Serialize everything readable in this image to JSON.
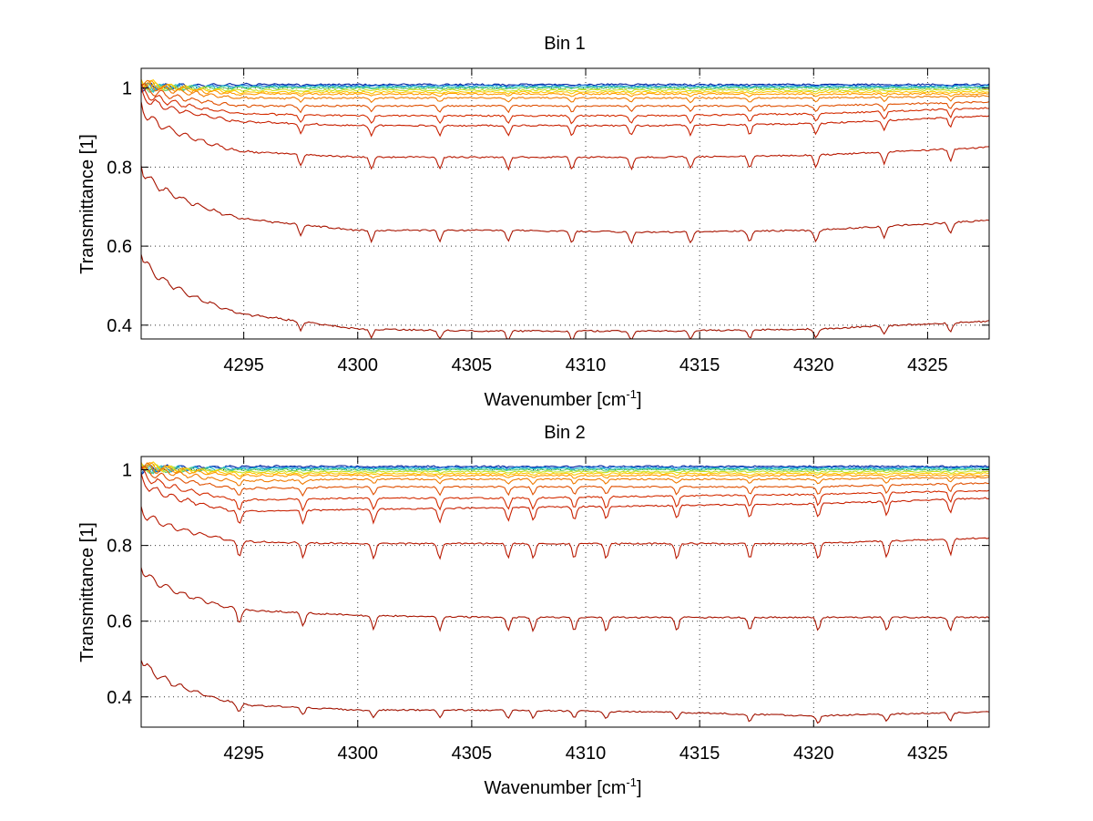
{
  "chart_data": [
    {
      "type": "line",
      "title": "Bin 1",
      "xlabel": "Wavenumber [cm",
      "xlabel_sup": "-1",
      "xlabel_close": "]",
      "ylabel": "Transmittance [1]",
      "xlim": [
        4290.5,
        4327.7
      ],
      "ylim": [
        0.365,
        1.05
      ],
      "xticks": [
        4295,
        4300,
        4305,
        4310,
        4315,
        4320,
        4325
      ],
      "yticks": [
        0.4,
        0.6,
        0.8,
        1
      ],
      "ytick_labels": [
        "0.4",
        "0.6",
        "0.8",
        "1"
      ],
      "grid": true,
      "line_features": [
        4297.5,
        4300.6,
        4303.6,
        4306.6,
        4309.4,
        4312.0,
        4314.6,
        4317.2,
        4320.1,
        4323.1,
        4326.0
      ],
      "series": [
        {
          "name": "s1",
          "color": "#a11200",
          "baseline": [
            0.59,
            0.43,
            0.39,
            0.385,
            0.385,
            0.39,
            0.41
          ],
          "dip": 0.022
        },
        {
          "name": "s2",
          "color": "#a81400",
          "baseline": [
            0.81,
            0.67,
            0.64,
            0.64,
            0.635,
            0.64,
            0.665
          ],
          "dip": 0.028
        },
        {
          "name": "s3",
          "color": "#b81800",
          "baseline": [
            0.96,
            0.84,
            0.825,
            0.825,
            0.825,
            0.83,
            0.85
          ],
          "dip": 0.03
        },
        {
          "name": "s4",
          "color": "#c82000",
          "baseline": [
            0.99,
            0.915,
            0.905,
            0.905,
            0.905,
            0.91,
            0.93
          ],
          "dip": 0.025
        },
        {
          "name": "s5",
          "color": "#d42c00",
          "baseline": [
            1.0,
            0.935,
            0.93,
            0.93,
            0.93,
            0.935,
            0.95
          ],
          "dip": 0.02
        },
        {
          "name": "s6",
          "color": "#e05000",
          "baseline": [
            1.01,
            0.955,
            0.955,
            0.955,
            0.955,
            0.955,
            0.965
          ],
          "dip": 0.015
        },
        {
          "name": "s7",
          "color": "#f07a00",
          "baseline": [
            1.02,
            0.975,
            0.975,
            0.975,
            0.975,
            0.975,
            0.98
          ],
          "dip": 0.01
        },
        {
          "name": "s8",
          "color": "#ff9a00",
          "baseline": [
            1.02,
            0.985,
            0.985,
            0.985,
            0.985,
            0.985,
            0.985
          ],
          "dip": 0.006
        },
        {
          "name": "s9",
          "color": "#ffc800",
          "baseline": [
            1.02,
            0.99,
            0.99,
            0.99,
            0.99,
            0.99,
            0.99
          ],
          "dip": 0.004
        },
        {
          "name": "s10",
          "color": "#c8e020",
          "baseline": [
            1.01,
            0.995,
            0.995,
            0.995,
            0.995,
            0.995,
            0.995
          ],
          "dip": 0.003
        },
        {
          "name": "s11",
          "color": "#6ad070",
          "baseline": [
            1.0,
            1.0,
            1.0,
            1.0,
            1.0,
            1.0,
            1.0
          ],
          "dip": 0.002
        },
        {
          "name": "s12",
          "color": "#20c0c0",
          "baseline": [
            1.0,
            1.003,
            1.003,
            1.003,
            1.003,
            1.003,
            1.003
          ],
          "dip": 0.002
        },
        {
          "name": "s13",
          "color": "#1e78d8",
          "baseline": [
            1.0,
            1.006,
            1.006,
            1.006,
            1.006,
            1.006,
            1.006
          ],
          "dip": 0.002
        },
        {
          "name": "s14",
          "color": "#0022a0",
          "baseline": [
            1.0,
            1.009,
            1.009,
            1.009,
            1.009,
            1.009,
            1.009
          ],
          "dip": 0.002
        }
      ]
    },
    {
      "type": "line",
      "title": "Bin 2",
      "xlabel": "Wavenumber [cm",
      "xlabel_sup": "-1",
      "xlabel_close": "]",
      "ylabel": "Transmittance [1]",
      "xlim": [
        4290.5,
        4327.7
      ],
      "ylim": [
        0.32,
        1.035
      ],
      "xticks": [
        4295,
        4300,
        4305,
        4310,
        4315,
        4320,
        4325
      ],
      "yticks": [
        0.4,
        0.6,
        0.8,
        1
      ],
      "ytick_labels": [
        "0.4",
        "0.6",
        "0.8",
        "1"
      ],
      "grid": true,
      "line_features": [
        4294.8,
        4297.6,
        4300.7,
        4303.6,
        4306.6,
        4307.7,
        4309.5,
        4310.9,
        4314.0,
        4317.2,
        4320.2,
        4323.2,
        4326.0
      ],
      "series": [
        {
          "name": "s1",
          "color": "#a11200",
          "baseline": [
            0.51,
            0.38,
            0.365,
            0.365,
            0.36,
            0.35,
            0.36
          ],
          "dip": 0.02
        },
        {
          "name": "s2",
          "color": "#a81400",
          "baseline": [
            0.75,
            0.63,
            0.615,
            0.61,
            0.61,
            0.61,
            0.61
          ],
          "dip": 0.035
        },
        {
          "name": "s3",
          "color": "#b81800",
          "baseline": [
            0.9,
            0.81,
            0.805,
            0.805,
            0.805,
            0.805,
            0.82
          ],
          "dip": 0.04
        },
        {
          "name": "s4",
          "color": "#c82000",
          "baseline": [
            0.98,
            0.89,
            0.895,
            0.9,
            0.905,
            0.91,
            0.925
          ],
          "dip": 0.035
        },
        {
          "name": "s5",
          "color": "#d42c00",
          "baseline": [
            1.0,
            0.92,
            0.925,
            0.925,
            0.93,
            0.935,
            0.945
          ],
          "dip": 0.03
        },
        {
          "name": "s6",
          "color": "#e05000",
          "baseline": [
            1.01,
            0.95,
            0.955,
            0.955,
            0.955,
            0.955,
            0.965
          ],
          "dip": 0.02
        },
        {
          "name": "s7",
          "color": "#f07a00",
          "baseline": [
            1.02,
            0.97,
            0.975,
            0.975,
            0.975,
            0.975,
            0.98
          ],
          "dip": 0.012
        },
        {
          "name": "s8",
          "color": "#ff9a00",
          "baseline": [
            1.02,
            0.985,
            0.985,
            0.985,
            0.985,
            0.985,
            0.985
          ],
          "dip": 0.007
        },
        {
          "name": "s9",
          "color": "#ffc800",
          "baseline": [
            1.02,
            0.99,
            0.99,
            0.99,
            0.99,
            0.99,
            0.99
          ],
          "dip": 0.004
        },
        {
          "name": "s10",
          "color": "#c8e020",
          "baseline": [
            1.01,
            0.995,
            0.995,
            0.995,
            0.995,
            0.995,
            0.995
          ],
          "dip": 0.003
        },
        {
          "name": "s11",
          "color": "#6ad070",
          "baseline": [
            1.0,
            1.0,
            1.0,
            1.0,
            1.0,
            1.0,
            1.0
          ],
          "dip": 0.002
        },
        {
          "name": "s12",
          "color": "#20c0c0",
          "baseline": [
            1.0,
            1.003,
            1.003,
            1.003,
            1.003,
            1.003,
            1.003
          ],
          "dip": 0.002
        },
        {
          "name": "s13",
          "color": "#1e78d8",
          "baseline": [
            1.0,
            1.006,
            1.006,
            1.006,
            1.006,
            1.006,
            1.006
          ],
          "dip": 0.002
        },
        {
          "name": "s14",
          "color": "#0022a0",
          "baseline": [
            1.0,
            1.009,
            1.009,
            1.009,
            1.009,
            1.009,
            1.009
          ],
          "dip": 0.002
        }
      ]
    }
  ]
}
